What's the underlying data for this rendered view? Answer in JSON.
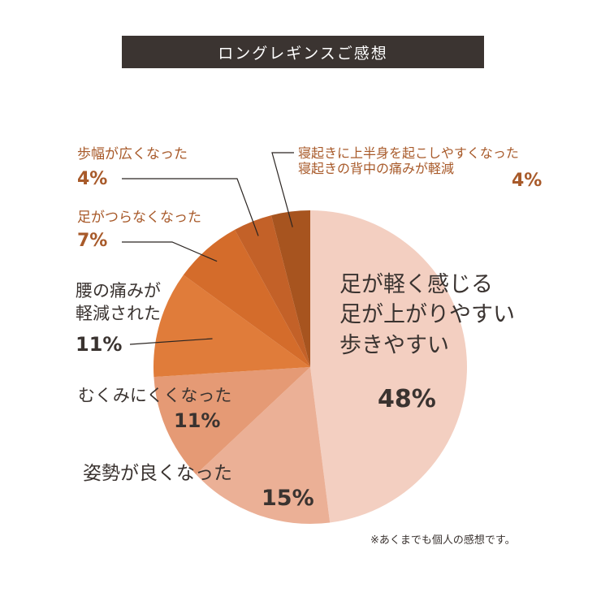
{
  "title": "ロングレギンスご感想",
  "note": "※あくまでも個人の感想です。",
  "colors": {
    "title_bg": "#3b3431",
    "slices": [
      "#f3cfc1",
      "#ebb096",
      "#e59a75",
      "#e07c3a",
      "#d46c2b",
      "#c36128",
      "#a7541f"
    ]
  },
  "chart_data": {
    "type": "pie",
    "start_angle_deg": 0,
    "direction": "clockwise",
    "slices": [
      {
        "label_lines": [
          "足が軽く感じる",
          "足が上がりやすい",
          "歩きやすい"
        ],
        "value": 48,
        "pct_text": "48%"
      },
      {
        "label_lines": [
          "姿勢が良くなった"
        ],
        "value": 15,
        "pct_text": "15%"
      },
      {
        "label_lines": [
          "むくみにくくなった"
        ],
        "value": 11,
        "pct_text": "11%"
      },
      {
        "label_lines": [
          "腰の痛みが",
          "軽減された"
        ],
        "value": 11,
        "pct_text": "11%"
      },
      {
        "label_lines": [
          "足がつらなくなった"
        ],
        "value": 7,
        "pct_text": "7%"
      },
      {
        "label_lines": [
          "歩幅が広くなった"
        ],
        "value": 4,
        "pct_text": "4%"
      },
      {
        "label_lines": [
          "寝起きに上半身を起こしやすくなった",
          "寝起きの背中の痛みが軽減"
        ],
        "value": 4,
        "pct_text": "4%"
      }
    ]
  }
}
